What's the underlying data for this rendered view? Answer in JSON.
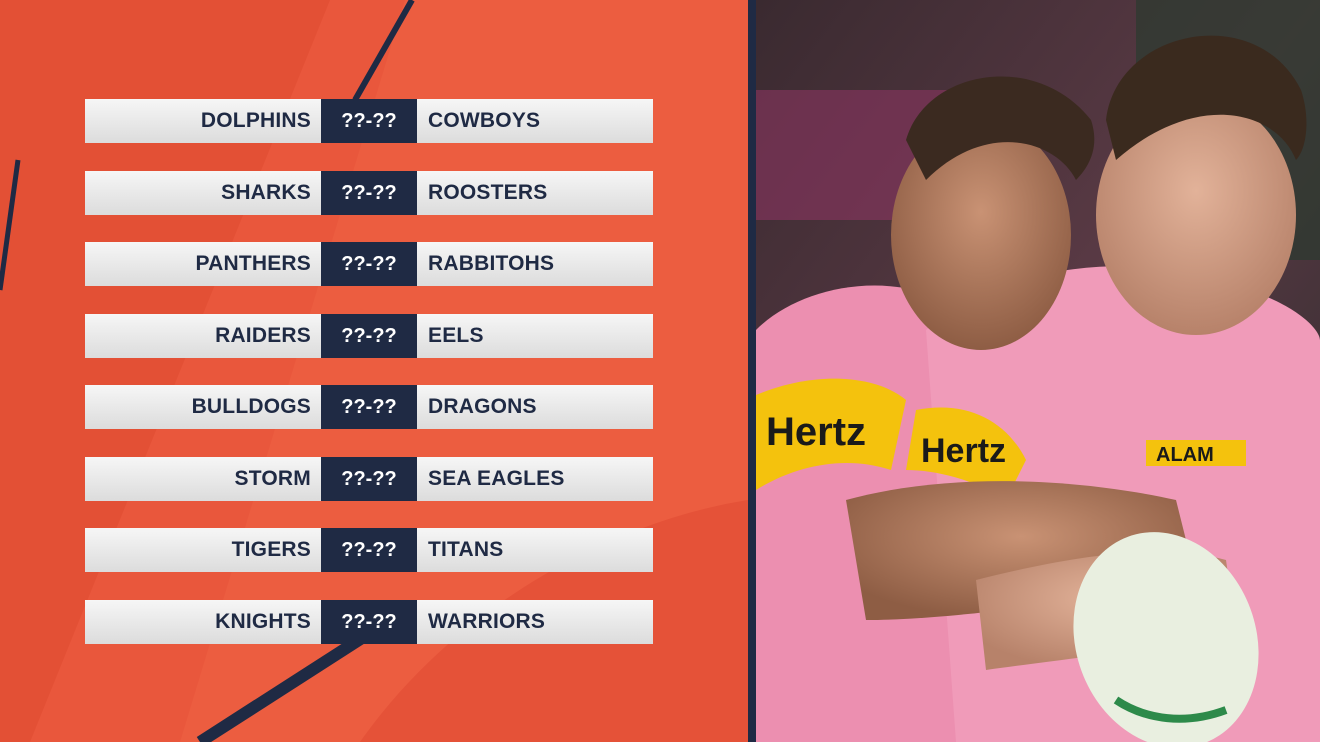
{
  "fixtures": [
    {
      "home": "DOLPHINS",
      "score": "??-??",
      "away": "COWBOYS"
    },
    {
      "home": "SHARKS",
      "score": "??-??",
      "away": "ROOSTERS"
    },
    {
      "home": "PANTHERS",
      "score": "??-??",
      "away": "RABBITOHS"
    },
    {
      "home": "RAIDERS",
      "score": "??-??",
      "away": "EELS"
    },
    {
      "home": "BULLDOGS",
      "score": "??-??",
      "away": "DRAGONS"
    },
    {
      "home": "STORM",
      "score": "??-??",
      "away": "SEA EAGLES"
    },
    {
      "home": "TIGERS",
      "score": "??-??",
      "away": "TITANS"
    },
    {
      "home": "KNIGHTS",
      "score": "??-??",
      "away": "WARRIORS"
    }
  ],
  "colors": {
    "background": "#e9573c",
    "navy": "#1f2a44",
    "bar": "#eeeeee",
    "jersey_pink": "#ec8fb0"
  },
  "photo": {
    "jersey_text": [
      "Hertz",
      "Hertz",
      "ALAM"
    ]
  }
}
